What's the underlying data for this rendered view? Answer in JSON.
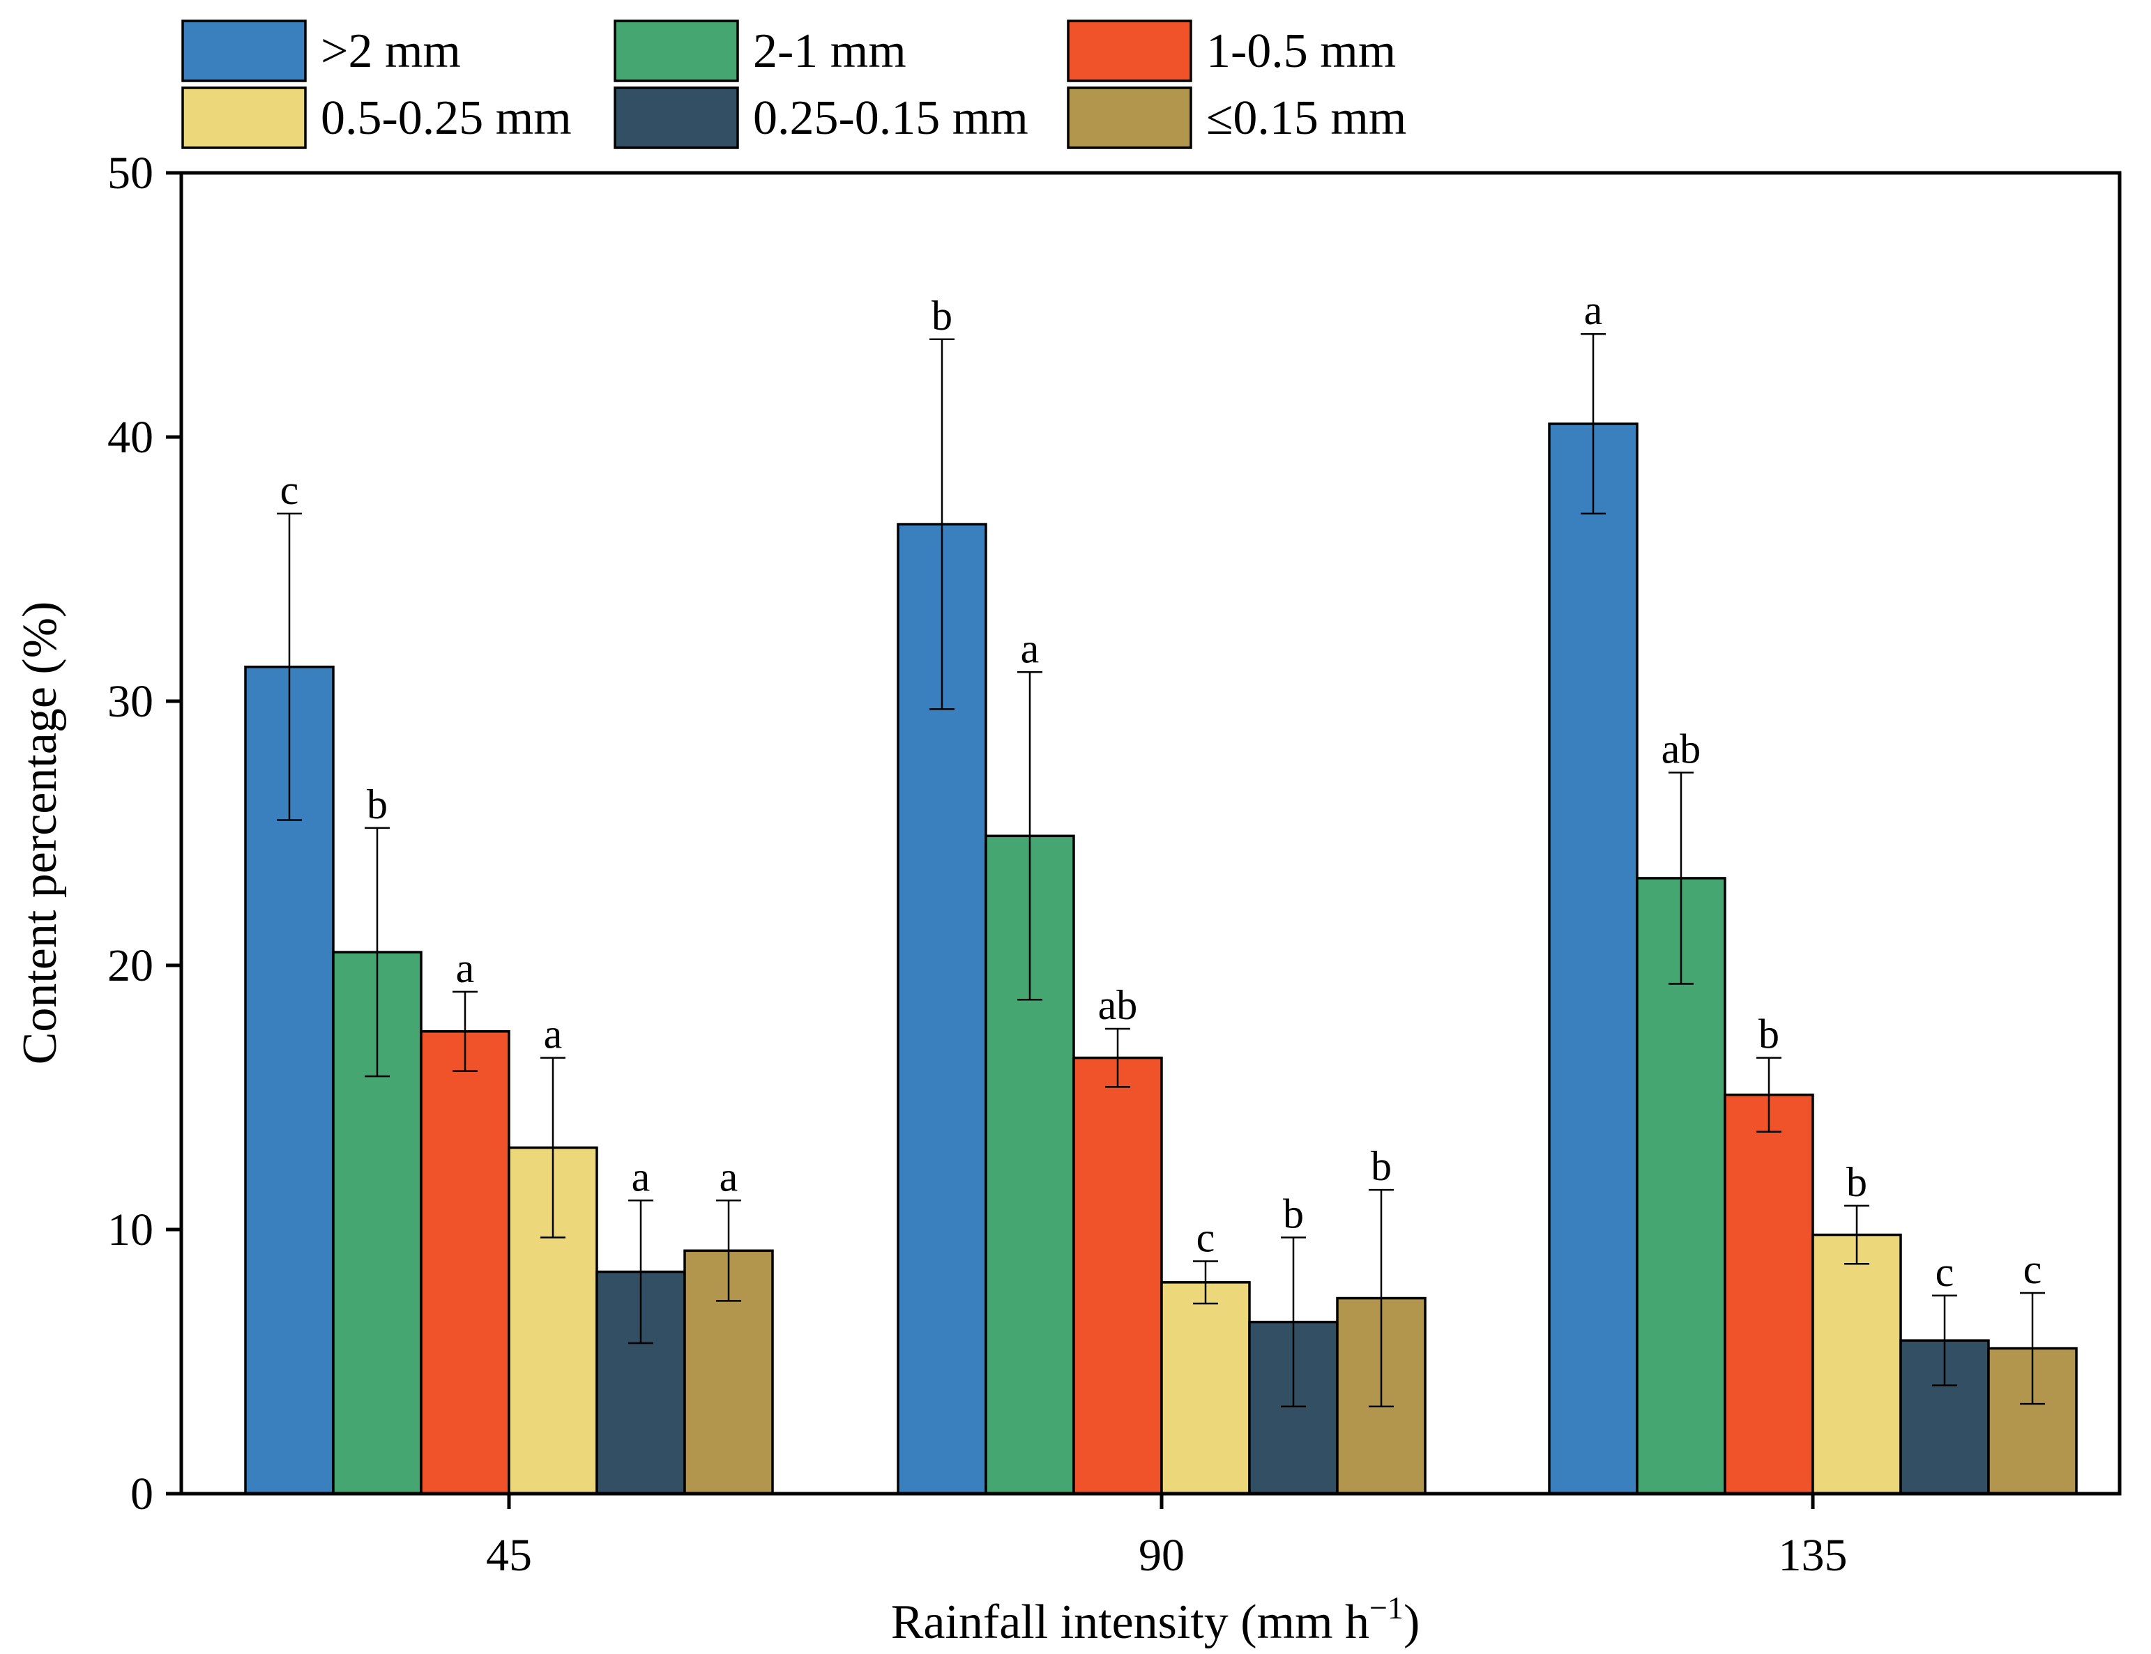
{
  "chart_data": {
    "type": "bar",
    "title": "",
    "xlabel": "Rainfall intensity (mm h",
    "xlabel_sup": "−1",
    "xlabel_end": ")",
    "ylabel": "Content percentage (%)",
    "ylim": [
      0,
      50
    ],
    "yticks": [
      "0",
      "10",
      "20",
      "30",
      "40",
      "50"
    ],
    "grid": false,
    "legend_position": "top",
    "categories": [
      "45",
      "90",
      "135"
    ],
    "series": [
      {
        "name": ">2 mm",
        "color": "#3a80bf",
        "values": [
          31.3,
          36.7,
          40.5
        ],
        "errors": [
          5.8,
          7.0,
          3.4
        ],
        "letters": [
          "c",
          "b",
          "a"
        ]
      },
      {
        "name": "2-1 mm",
        "color": "#46a672",
        "values": [
          20.5,
          24.9,
          23.3
        ],
        "errors": [
          4.7,
          6.2,
          4.0
        ],
        "letters": [
          "b",
          "a",
          "ab"
        ]
      },
      {
        "name": "1-0.5 mm",
        "color": "#f05329",
        "values": [
          17.5,
          16.5,
          15.1
        ],
        "errors": [
          1.5,
          1.1,
          1.4
        ],
        "letters": [
          "a",
          "ab",
          "b"
        ]
      },
      {
        "name": "0.5-0.25 mm",
        "color": "#ecd87b",
        "values": [
          13.1,
          8.0,
          9.8
        ],
        "errors": [
          3.4,
          0.8,
          1.1
        ],
        "letters": [
          "a",
          "c",
          "b"
        ]
      },
      {
        "name": "0.25-0.15 mm",
        "color": "#324f64",
        "values": [
          8.4,
          6.5,
          5.8
        ],
        "errors": [
          2.7,
          3.2,
          1.7
        ],
        "letters": [
          "a",
          "b",
          "c"
        ]
      },
      {
        "name": "≤0.15 mm",
        "color": "#b3964e",
        "values": [
          9.2,
          7.4,
          5.5
        ],
        "errors": [
          1.9,
          4.1,
          2.1
        ],
        "letters": [
          "a",
          "b",
          "c"
        ]
      }
    ]
  }
}
